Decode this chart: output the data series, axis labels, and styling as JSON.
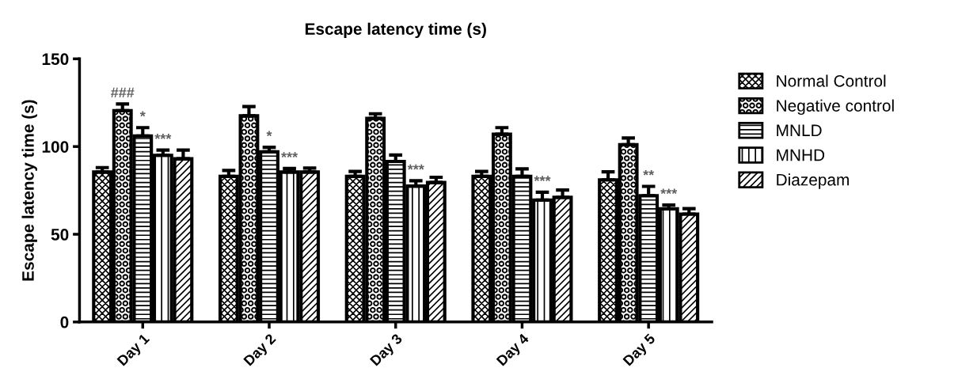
{
  "chart_data": {
    "type": "bar",
    "title": "Escape latency time (s)",
    "ylabel": "Escape latency time (s)",
    "categories": [
      "Day 1",
      "Day 2",
      "Day 3",
      "Day 4",
      "Day 5"
    ],
    "ylim": [
      0,
      150
    ],
    "yticks": [
      0,
      50,
      100,
      150
    ],
    "grid": false,
    "legend": "right",
    "series": [
      {
        "name": "Normal Control",
        "color": "#000000",
        "values": [
          85.5,
          83,
          83,
          83,
          81
        ],
        "errors": [
          2.5,
          3.4,
          2.8,
          2.8,
          4.6
        ],
        "value_labels": [
          null,
          null,
          null,
          null,
          null
        ]
      },
      {
        "name": "Negative control",
        "color": "#000000",
        "values": [
          120.5,
          117.5,
          116,
          107,
          101
        ],
        "errors": [
          3.8,
          5.3,
          2.7,
          3.8,
          3.9
        ],
        "value_labels": [
          "###",
          null,
          null,
          null,
          null
        ]
      },
      {
        "name": "MNLD",
        "color": "#000000",
        "values": [
          106,
          97,
          91.5,
          83,
          72
        ],
        "errors": [
          4.8,
          2.6,
          3.7,
          4.3,
          5.3
        ],
        "value_labels": [
          "*",
          "*",
          null,
          null,
          "**"
        ]
      },
      {
        "name": "MNHD",
        "color": "#000000",
        "values": [
          95,
          85.5,
          77.5,
          69.5,
          64.5
        ],
        "errors": [
          3,
          2,
          3,
          4.5,
          2.2
        ],
        "value_labels": [
          "***",
          "***",
          "***",
          "***",
          "***"
        ]
      },
      {
        "name": "Diazepam",
        "color": "#000000",
        "values": [
          93,
          85.5,
          79.5,
          71,
          61.5
        ],
        "errors": [
          5,
          2.2,
          3,
          4.2,
          3.1
        ],
        "value_labels": [
          null,
          null,
          null,
          null,
          null
        ]
      }
    ]
  }
}
